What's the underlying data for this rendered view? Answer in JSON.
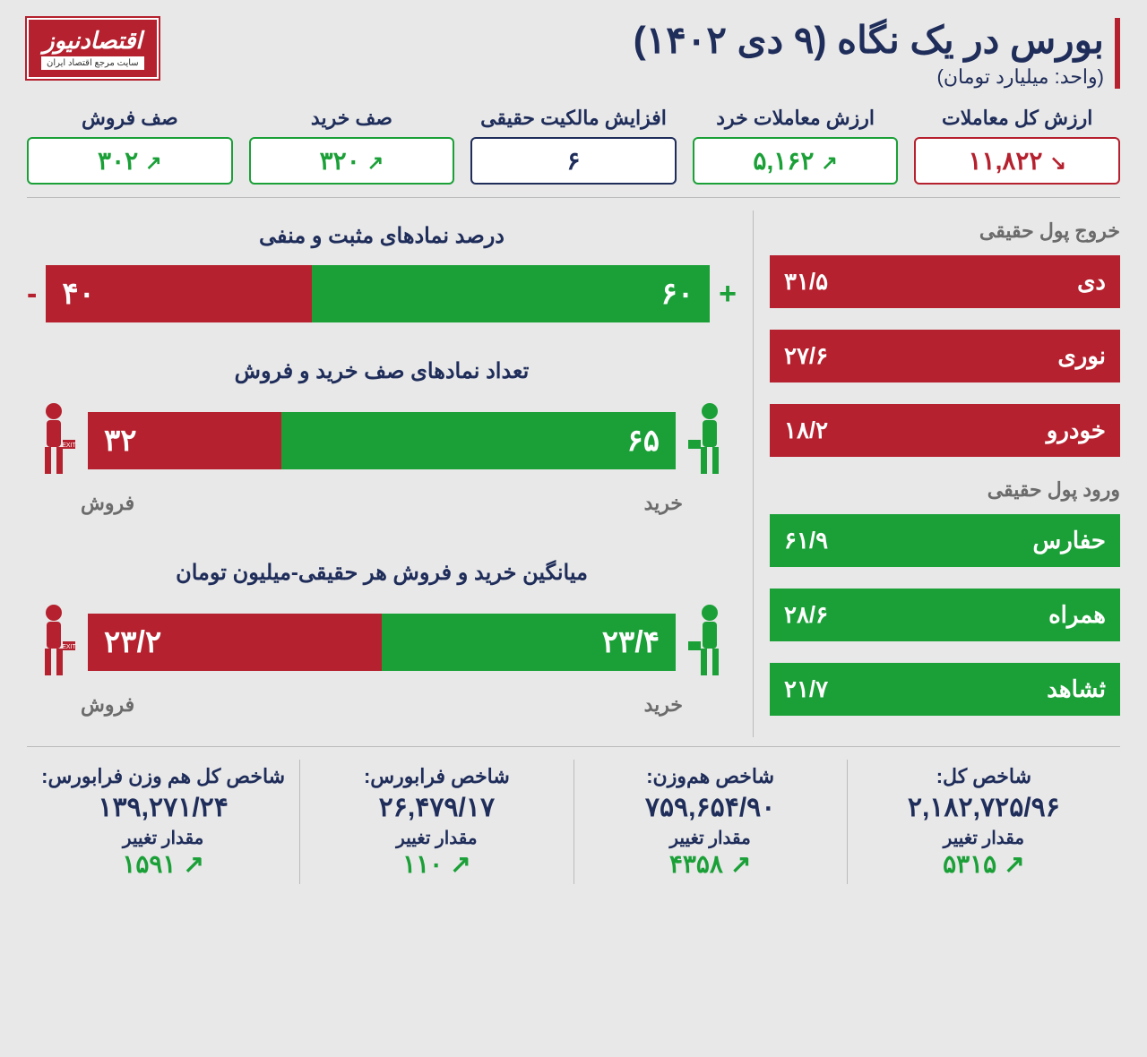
{
  "colors": {
    "green": "#1ba038",
    "red": "#b5212e",
    "navy": "#1f2d5a",
    "gray": "#6b6b6b",
    "bg": "#e8e8e8"
  },
  "header": {
    "title": "بورس در یک نگاه (۹ دی ۱۴۰۲)",
    "subtitle": "(واحد: میلیارد تومان)",
    "logo_main": "اقتصادنیوز",
    "logo_sub": "سایت مرجع اقتصاد ایران"
  },
  "stats": [
    {
      "label": "ارزش کل معاملات",
      "value": "۱۱,۸۲۲",
      "dir": "down",
      "color": "#b5212e"
    },
    {
      "label": "ارزش معاملات خرد",
      "value": "۵,۱۶۲",
      "dir": "up",
      "color": "#1ba038"
    },
    {
      "label": "افزایش مالکیت حقیقی",
      "value": "۶",
      "dir": "none",
      "color": "#1f2d5a"
    },
    {
      "label": "صف خرید",
      "value": "۳۲۰",
      "dir": "up",
      "color": "#1ba038"
    },
    {
      "label": "صف فروش",
      "value": "۳۰۲",
      "dir": "up",
      "color": "#1ba038"
    }
  ],
  "outflow": {
    "title": "خروج پول حقیقی",
    "color": "#b5212e",
    "items": [
      {
        "name": "دی",
        "value": "۳۱/۵"
      },
      {
        "name": "نوری",
        "value": "۲۷/۶"
      },
      {
        "name": "خودرو",
        "value": "۱۸/۲"
      }
    ]
  },
  "inflow": {
    "title": "ورود پول حقیقی",
    "color": "#1ba038",
    "items": [
      {
        "name": "حفارس",
        "value": "۶۱/۹"
      },
      {
        "name": "همراه",
        "value": "۲۸/۶"
      },
      {
        "name": "ثشاهد",
        "value": "۲۱/۷"
      }
    ]
  },
  "pct_bar": {
    "title": "درصد نمادهای مثبت و منفی",
    "pos_label": "۶۰",
    "pos_pct": 60,
    "pos_color": "#1ba038",
    "neg_label": "۴۰",
    "neg_pct": 40,
    "neg_color": "#b5212e",
    "plus": "+",
    "minus": "-"
  },
  "queue_bar": {
    "title": "تعداد نمادهای صف خرید و فروش",
    "buy_value": "۶۵",
    "buy_pct": 67,
    "buy_color": "#1ba038",
    "buy_label": "خرید",
    "sell_value": "۳۲",
    "sell_pct": 33,
    "sell_color": "#b5212e",
    "sell_label": "فروش"
  },
  "avg_bar": {
    "title": "میانگین خرید و فروش هر حقیقی-میلیون تومان",
    "buy_value": "۲۳/۴",
    "buy_pct": 50,
    "buy_color": "#1ba038",
    "buy_label": "خرید",
    "sell_value": "۲۳/۲",
    "sell_pct": 50,
    "sell_color": "#b5212e",
    "sell_label": "فروش"
  },
  "indices": [
    {
      "name": "شاخص کل:",
      "value": "۲,۱۸۲,۷۲۵/۹۶",
      "change_label": "مقدار تغییر",
      "change": "۵۳۱۵",
      "dir": "up",
      "color": "#1ba038"
    },
    {
      "name": "شاخص هم‌وزن:",
      "value": "۷۵۹,۶۵۴/۹۰",
      "change_label": "مقدار تغییر",
      "change": "۴۳۵۸",
      "dir": "up",
      "color": "#1ba038"
    },
    {
      "name": "شاخص فرابورس:",
      "value": "۲۶,۴۷۹/۱۷",
      "change_label": "مقدار تغییر",
      "change": "۱۱۰",
      "dir": "up",
      "color": "#1ba038"
    },
    {
      "name": "شاخص کل هم وزن فرابورس:",
      "value": "۱۳۹,۲۷۱/۲۴",
      "change_label": "مقدار تغییر",
      "change": "۱۵۹۱",
      "dir": "up",
      "color": "#1ba038"
    }
  ]
}
